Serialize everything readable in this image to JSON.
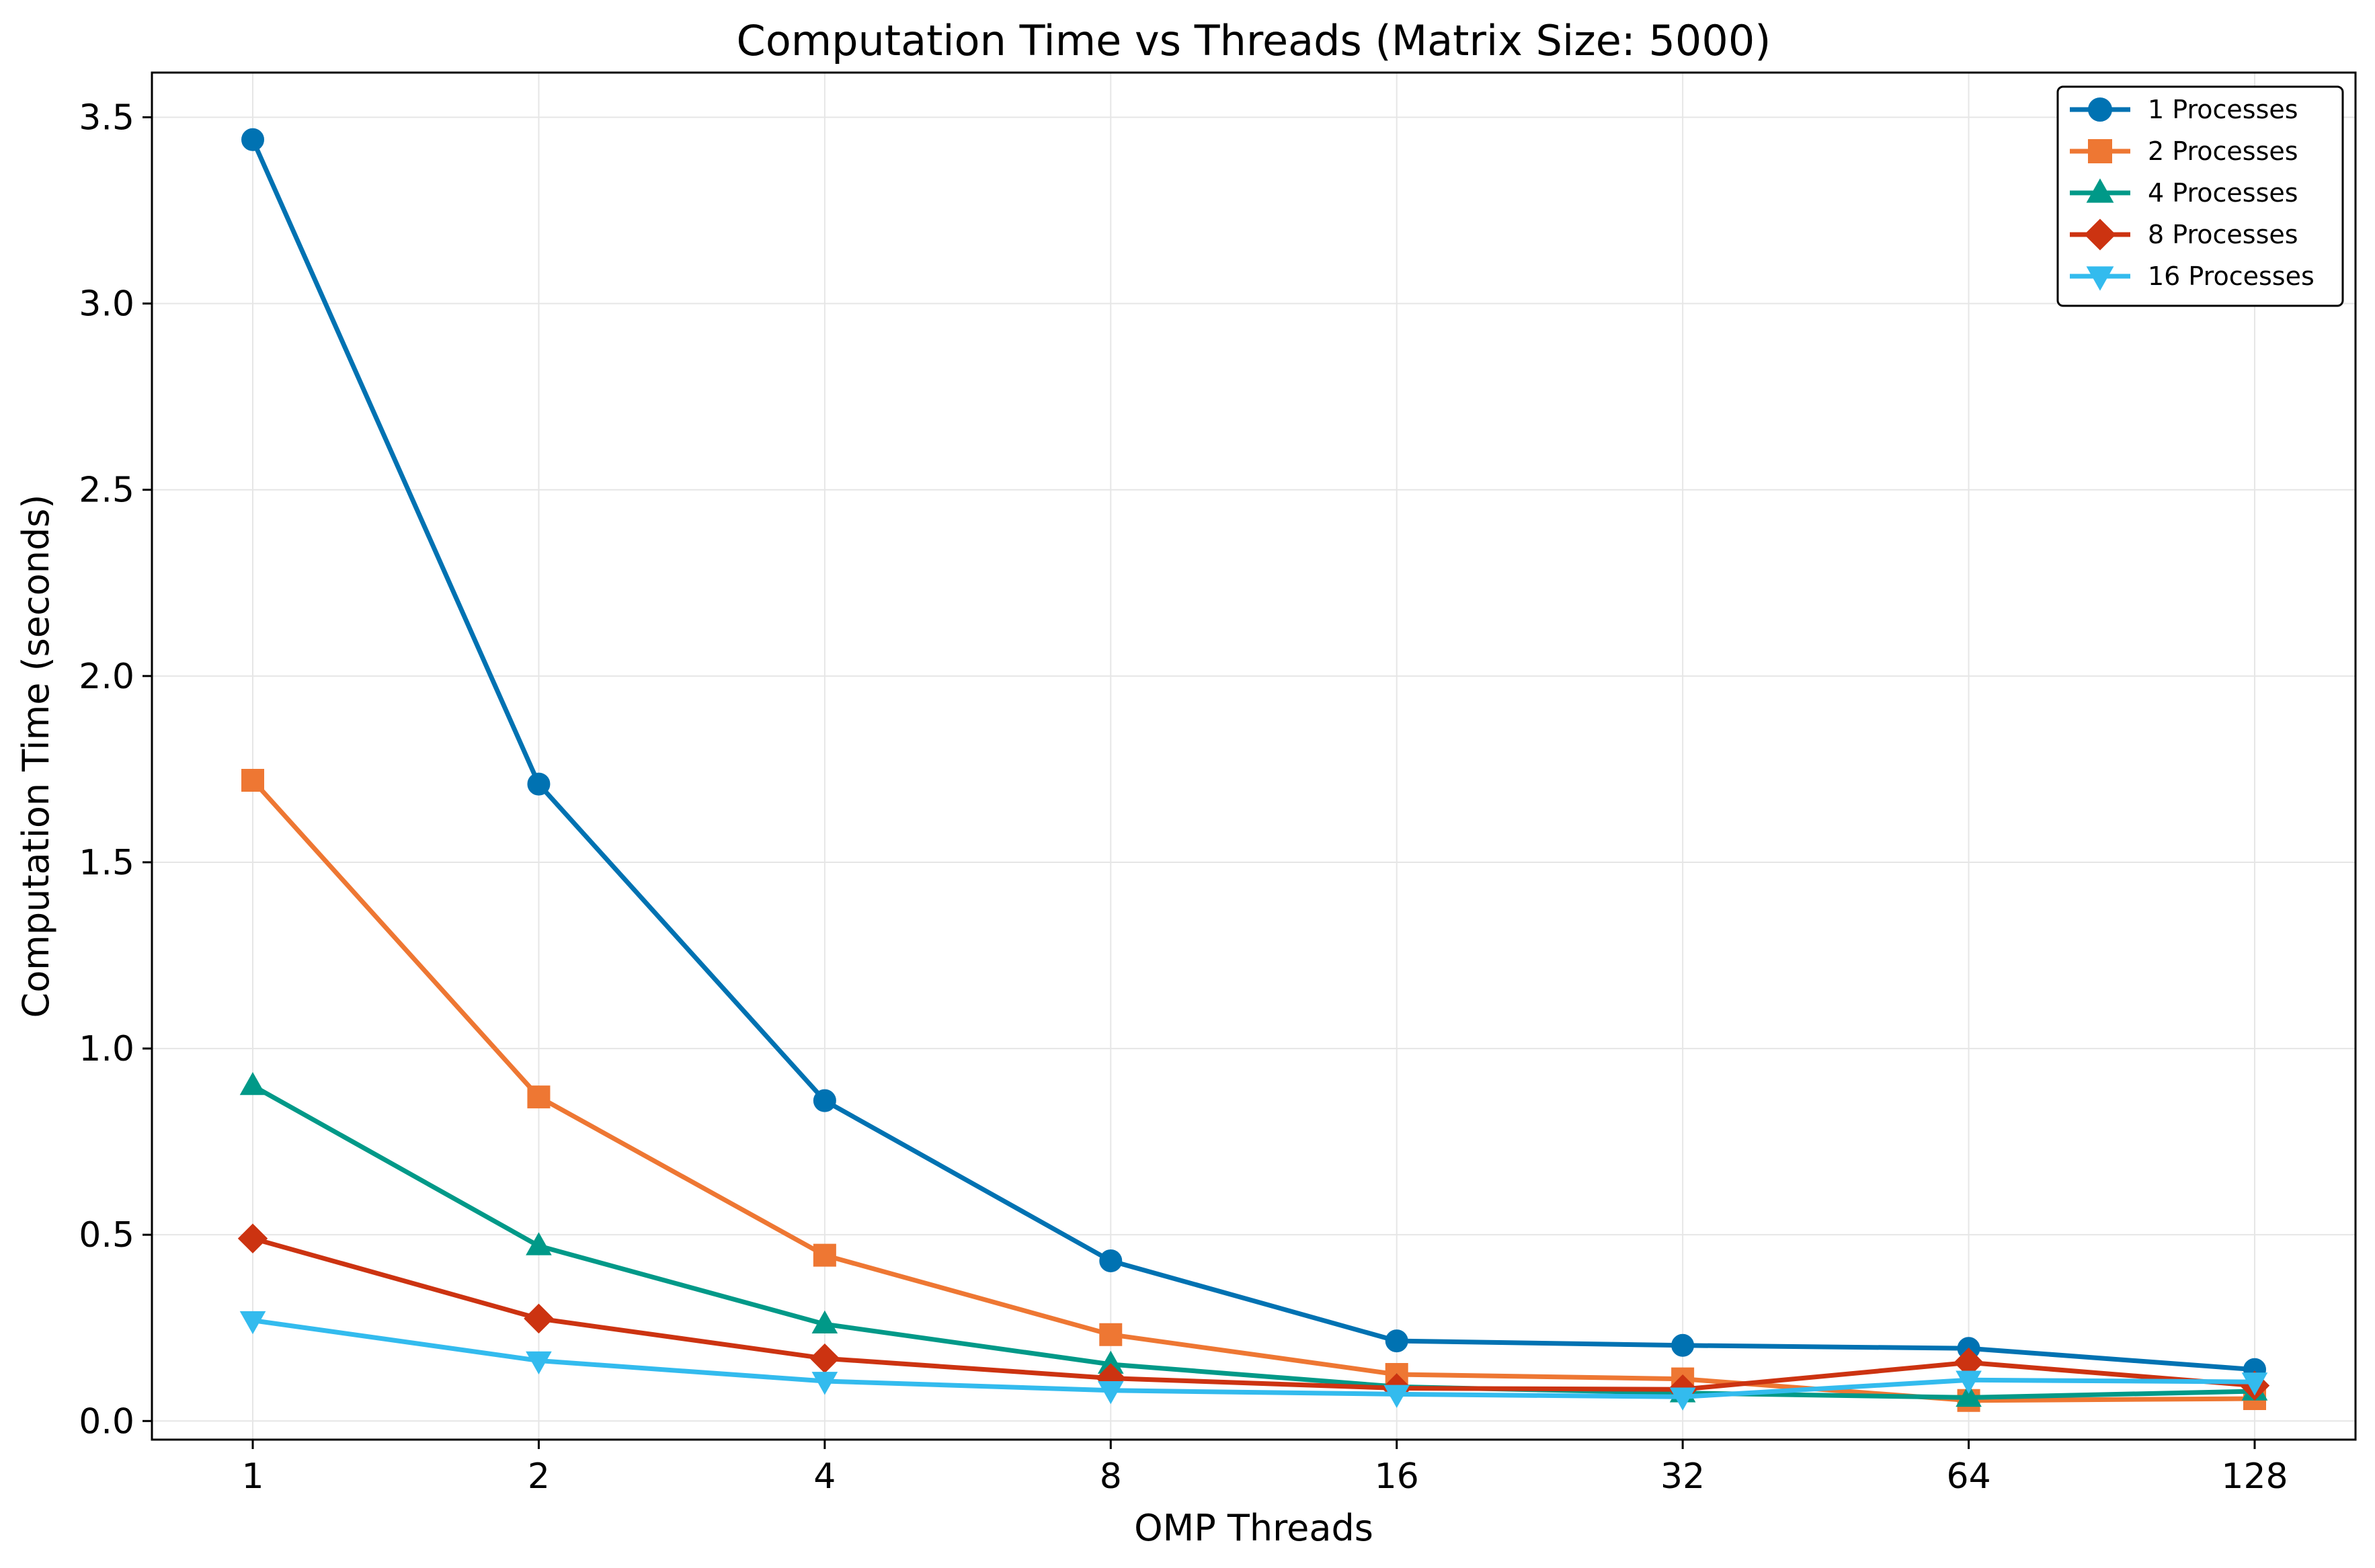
{
  "chart_data": {
    "type": "line",
    "title": "Computation Time vs Threads (Matrix Size: 5000)",
    "xlabel": "OMP Threads",
    "ylabel": "Computation Time (seconds)",
    "x_scale": "log2",
    "categories": [
      "1",
      "2",
      "4",
      "8",
      "16",
      "32",
      "64",
      "128"
    ],
    "x": [
      1,
      2,
      4,
      8,
      16,
      32,
      64,
      128
    ],
    "ylim": [
      -0.05,
      3.62
    ],
    "yticks": [
      0.0,
      0.5,
      1.0,
      1.5,
      2.0,
      2.5,
      3.0,
      3.5
    ],
    "ytick_labels": [
      "0.0",
      "0.5",
      "1.0",
      "1.5",
      "2.0",
      "2.5",
      "3.0",
      "3.5"
    ],
    "grid": true,
    "legend_position": "top-right",
    "series": [
      {
        "name": "1 Processes",
        "color": "#0072B2",
        "marker": "circle",
        "values": [
          3.44,
          1.71,
          0.86,
          0.43,
          0.215,
          0.203,
          0.195,
          0.138
        ]
      },
      {
        "name": "2 Processes",
        "color": "#EE7733",
        "marker": "square",
        "values": [
          1.72,
          0.87,
          0.445,
          0.232,
          0.125,
          0.113,
          0.055,
          0.06
        ]
      },
      {
        "name": "4 Processes",
        "color": "#009988",
        "marker": "triangle-up",
        "values": [
          0.9,
          0.47,
          0.26,
          0.152,
          0.092,
          0.075,
          0.063,
          0.08
        ]
      },
      {
        "name": "8 Processes",
        "color": "#CC3311",
        "marker": "diamond",
        "values": [
          0.49,
          0.275,
          0.168,
          0.115,
          0.088,
          0.085,
          0.157,
          0.095
        ]
      },
      {
        "name": "16 Processes",
        "color": "#33BBEE",
        "marker": "triangle-down",
        "values": [
          0.27,
          0.162,
          0.107,
          0.082,
          0.072,
          0.065,
          0.11,
          0.105
        ]
      }
    ]
  }
}
